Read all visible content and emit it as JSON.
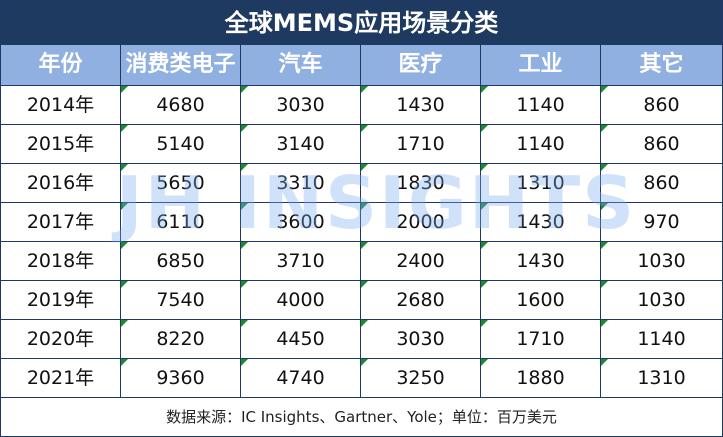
{
  "title": "全球MEMS应用场景分类",
  "table": {
    "header": [
      "年份",
      "消费类电子",
      "汽车",
      "医疗",
      "工业",
      "其它"
    ],
    "rows": [
      [
        "2014年",
        4680,
        3030,
        1430,
        1140,
        860
      ],
      [
        "2015年",
        5140,
        3140,
        1710,
        1140,
        860
      ],
      [
        "2016年",
        5650,
        3310,
        1830,
        1310,
        860
      ],
      [
        "2017年",
        6110,
        3600,
        2000,
        1430,
        970
      ],
      [
        "2018年",
        6850,
        3710,
        2400,
        1430,
        1030
      ],
      [
        "2019年",
        7540,
        4000,
        2680,
        1600,
        1030
      ],
      [
        "2020年",
        8220,
        4450,
        3030,
        1710,
        1140
      ],
      [
        "2021年",
        9360,
        4740,
        3250,
        1880,
        1310
      ]
    ]
  },
  "footer": "数据来源：IC Insights、Gartner、Yole；单位：百万美元",
  "watermark": "JH INSIGHTS"
}
